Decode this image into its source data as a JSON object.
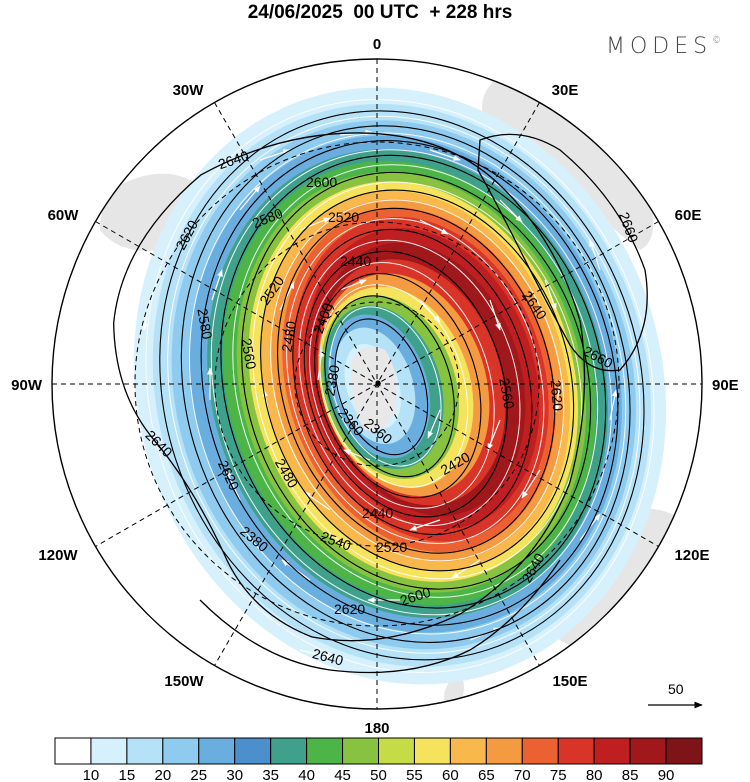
{
  "header": {
    "title": "24/06/2025  00 UTC  + 228 hrs",
    "brand": "MODES",
    "brand_mark": "©"
  },
  "map": {
    "projection": "south polar stereographic",
    "longitude_labels": {
      "top": "0",
      "bottom": "180",
      "left": "90W",
      "right": "90E",
      "upper_left_1": "30W",
      "upper_left_2": "60W",
      "upper_right_1": "30E",
      "upper_right_2": "60E",
      "lower_left_1": "120W",
      "lower_left_2": "150W",
      "lower_right_1": "120E",
      "lower_right_2": "150E"
    },
    "contour_labels": [
      "2640",
      "2600",
      "2520",
      "2620",
      "2580",
      "2440",
      "2660",
      "2640",
      "2520",
      "2480",
      "2400",
      "2560",
      "2660",
      "2380",
      "2360",
      "2580",
      "2560",
      "2640",
      "2620",
      "2620",
      "2420",
      "2440",
      "2540",
      "2520",
      "2640",
      "2600",
      "2620",
      "2640",
      "2360",
      "2380",
      "2480"
    ],
    "reference_vector": {
      "value": "50"
    },
    "colors": {
      "land": "#e9e9e9",
      "jet_core": "#8c1016"
    }
  },
  "colorbar": {
    "labels": [
      "10",
      "15",
      "20",
      "25",
      "30",
      "35",
      "40",
      "45",
      "50",
      "55",
      "60",
      "65",
      "70",
      "75",
      "80",
      "85",
      "90"
    ],
    "colors": [
      "#ffffff",
      "#d6f0fc",
      "#b6e2f8",
      "#8ecbef",
      "#6aaee0",
      "#4b8fcc",
      "#3fa08c",
      "#4db548",
      "#87c340",
      "#c6dc46",
      "#f6e35d",
      "#f8b84c",
      "#f49a40",
      "#ec6131",
      "#d93428",
      "#c01f22",
      "#a0181c",
      "#7e1418"
    ]
  }
}
